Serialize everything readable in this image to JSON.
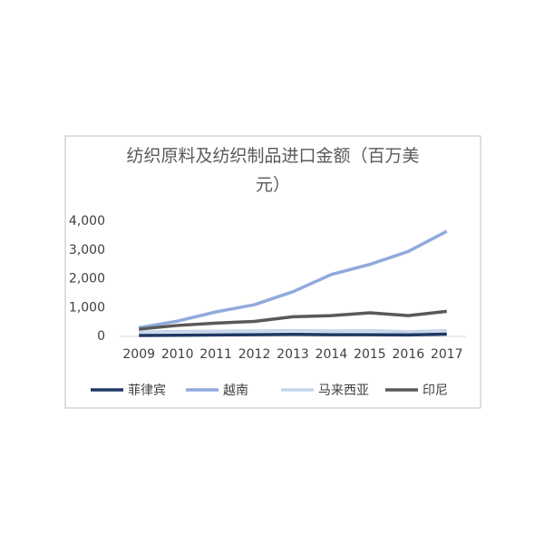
{
  "chart_data": {
    "type": "line",
    "title": "纺织原料及纺织制品进口金额（百万美元）",
    "categories": [
      "2009",
      "2010",
      "2011",
      "2012",
      "2013",
      "2014",
      "2015",
      "2016",
      "2017"
    ],
    "series": [
      {
        "name": "菲律宾",
        "color": "#1f3864",
        "values": [
          30,
          40,
          50,
          60,
          70,
          60,
          60,
          50,
          80
        ]
      },
      {
        "name": "越南",
        "color": "#8faadc",
        "values": [
          300,
          530,
          850,
          1100,
          1550,
          2150,
          2500,
          2950,
          3650
        ]
      },
      {
        "name": "马来西亚",
        "color": "#c5d5ea",
        "values": [
          150,
          170,
          180,
          190,
          200,
          190,
          200,
          160,
          200
        ]
      },
      {
        "name": "印尼",
        "color": "#595959",
        "values": [
          250,
          380,
          460,
          520,
          680,
          720,
          820,
          720,
          870
        ]
      }
    ],
    "ylim": [
      0,
      4000
    ],
    "yticks": [
      0,
      {
        "value": 1000,
        "label": "1,000"
      },
      {
        "value": 2000,
        "label": "2,000"
      },
      {
        "value": 3000,
        "label": "3,000"
      },
      {
        "value": 4000,
        "label": "4,000"
      }
    ],
    "grid": false,
    "legend": "bottom"
  }
}
